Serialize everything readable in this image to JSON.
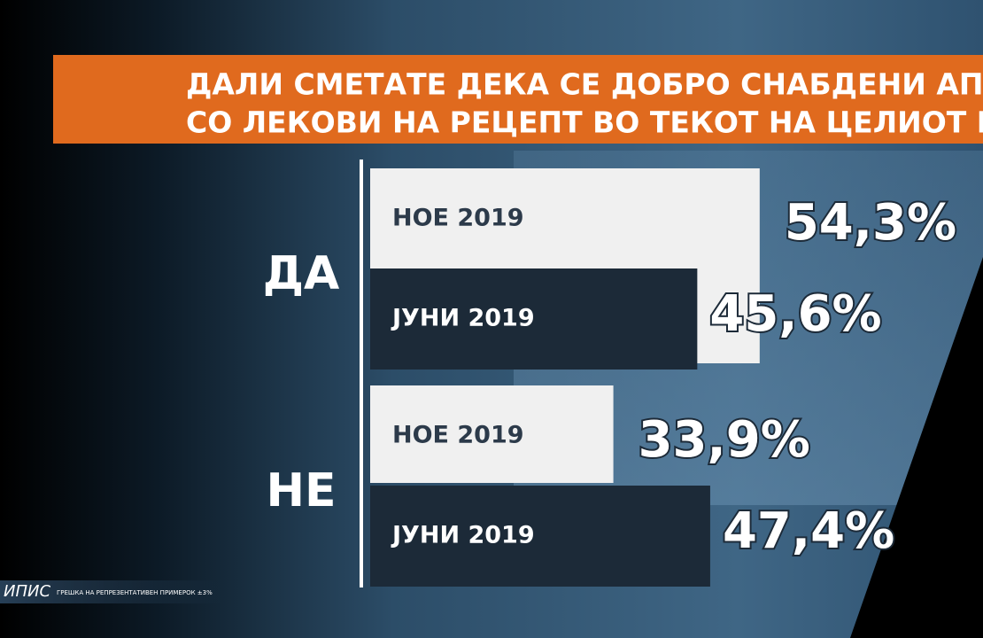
{
  "chart_data": {
    "type": "bar",
    "orientation": "horizontal",
    "title_lines": [
      "ДАЛИ СМЕТАТЕ ДЕКА СЕ ДОБРО СНАБДЕНИ АПТЕКИТ",
      "СО ЛЕКОВИ НА РЕЦЕПТ ВО ТЕКОТ НА ЦЕЛИОТ МЕСЕЦ"
    ],
    "categories": [
      "ДА",
      "НЕ"
    ],
    "series": [
      {
        "name": "НОЕ 2019",
        "color": "#f0f0f0",
        "values": [
          54.3,
          33.9
        ],
        "value_labels": [
          "54,3%",
          "33,9%"
        ]
      },
      {
        "name": "ЈУНИ 2019",
        "color": "#1c2a38",
        "values": [
          45.6,
          47.4
        ],
        "value_labels": [
          "45,6%",
          "47,4%"
        ]
      }
    ],
    "xlim": [
      0,
      100
    ],
    "source": "ИПИС",
    "note": "ГРЕШКА НА РЕПРЕЗЕНТАТИВЕН ПРИМЕРОК ±3%"
  }
}
